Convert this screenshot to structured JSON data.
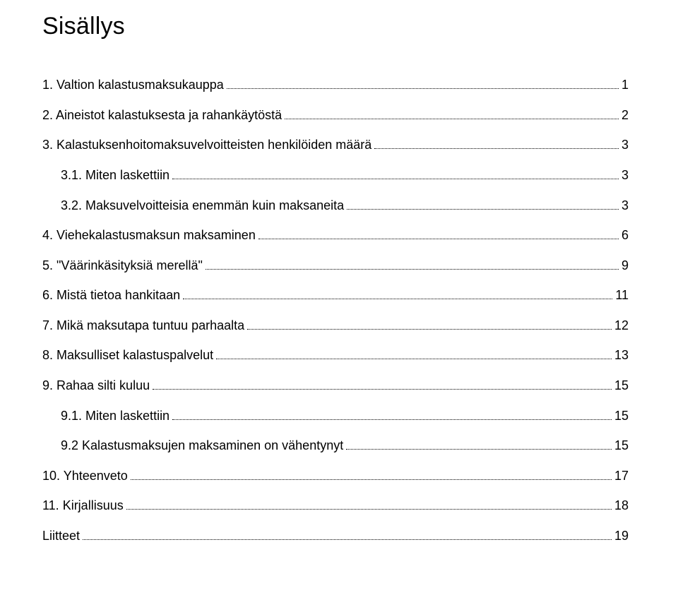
{
  "title": "Sisällys",
  "font": {
    "title_size_pt": 26,
    "body_size_pt": 13,
    "family": "Arial, Helvetica, sans-serif",
    "color": "#000000"
  },
  "background_color": "#ffffff",
  "entries": [
    {
      "label": "1. Valtion kalastusmaksukauppa",
      "page": "1",
      "indent": false
    },
    {
      "label": "2. Aineistot kalastuksesta ja rahankäytöstä",
      "page": "2",
      "indent": false
    },
    {
      "label": "3. Kalastuksenhoitomaksuvelvoitteisten henkilöiden määrä",
      "page": "3",
      "indent": false
    },
    {
      "label": "3.1. Miten laskettiin",
      "page": "3",
      "indent": true
    },
    {
      "label": "3.2. Maksuvelvoitteisia enemmän kuin maksaneita",
      "page": "3",
      "indent": true
    },
    {
      "label": "4. Viehekalastusmaksun maksaminen",
      "page": "6",
      "indent": false
    },
    {
      "label": "5. \"Väärinkäsityksiä merellä\"",
      "page": "9",
      "indent": false
    },
    {
      "label": "6. Mistä tietoa hankitaan",
      "page": "11",
      "indent": false
    },
    {
      "label": "7. Mikä maksutapa tuntuu parhaalta",
      "page": "12",
      "indent": false
    },
    {
      "label": "8. Maksulliset kalastuspalvelut",
      "page": "13",
      "indent": false
    },
    {
      "label": "9. Rahaa silti kuluu",
      "page": "15",
      "indent": false
    },
    {
      "label": "9.1. Miten laskettiin",
      "page": "15",
      "indent": true
    },
    {
      "label": "9.2 Kalastusmaksujen maksaminen on vähentynyt",
      "page": "15",
      "indent": true
    },
    {
      "label": "10. Yhteenveto",
      "page": "17",
      "indent": false
    },
    {
      "label": "11. Kirjallisuus",
      "page": "18",
      "indent": false
    },
    {
      "label": "Liitteet",
      "page": "19",
      "indent": false
    }
  ]
}
